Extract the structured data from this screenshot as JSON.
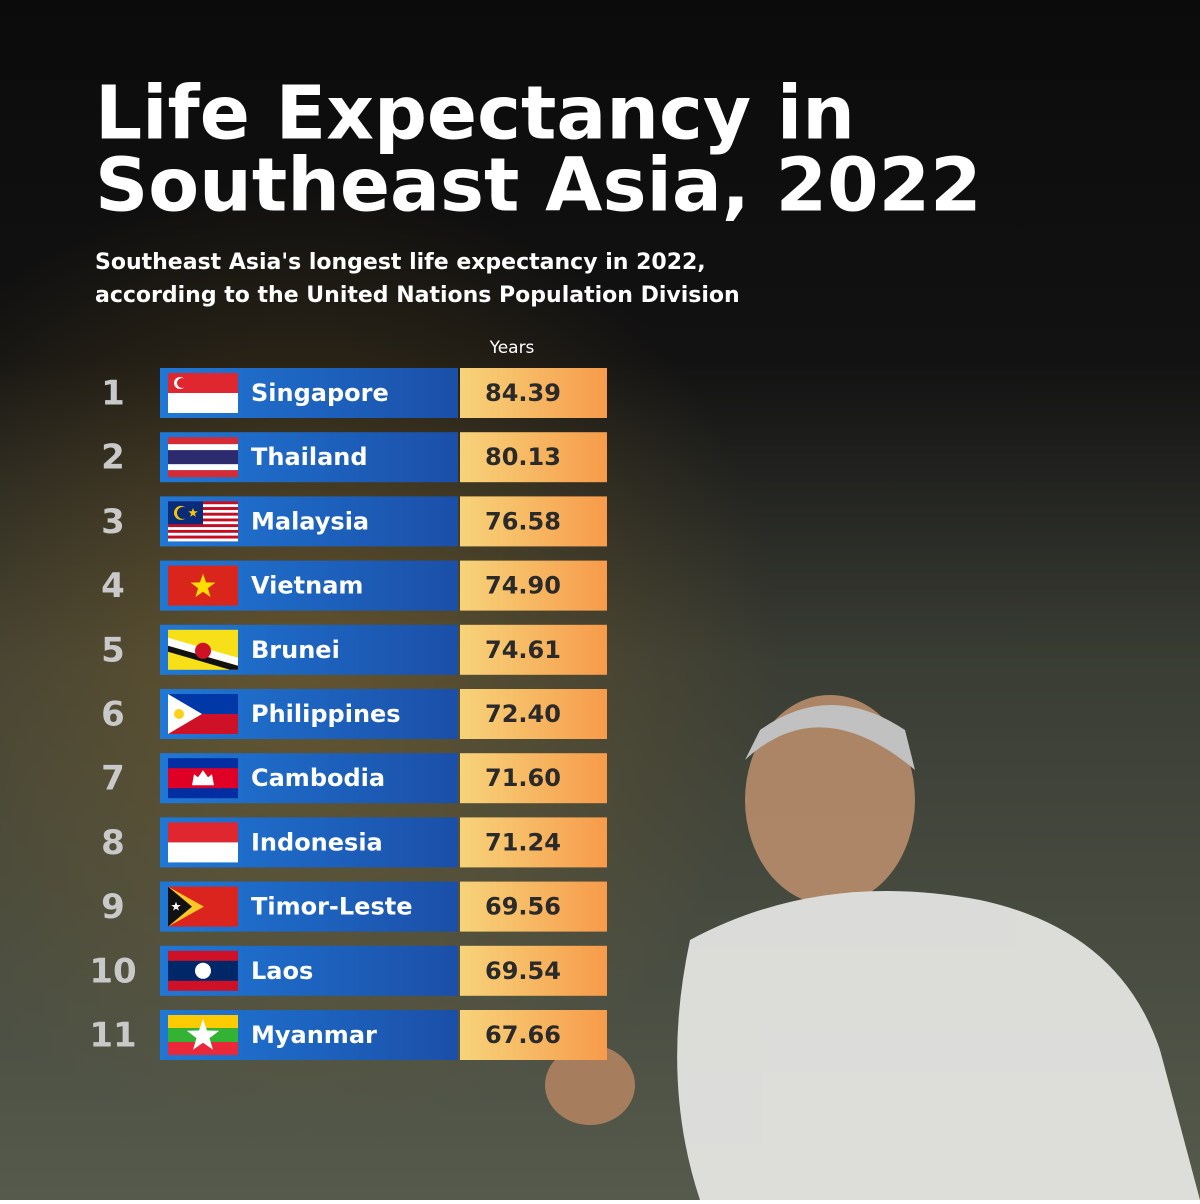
{
  "header": {
    "title_lines": [
      "Life Expectancy in",
      "Southeast Asia, 2022"
    ],
    "subtitle_lines": [
      "Southeast Asia's longest life expectancy in 2022,",
      "according to the United Nations Population Division"
    ]
  },
  "table": {
    "column_header": "Years",
    "rows": [
      [
        "1",
        "Singapore",
        "84.39"
      ],
      [
        "2",
        "Thailand",
        "80.13"
      ],
      [
        "3",
        "Malaysia",
        "76.58"
      ],
      [
        "4",
        "Vietnam",
        "74.90"
      ],
      [
        "5",
        "Brunei",
        "74.61"
      ],
      [
        "6",
        "Philippines",
        "72.40"
      ],
      [
        "7",
        "Cambodia",
        "71.60"
      ],
      [
        "8",
        "Indonesia",
        "71.24"
      ],
      [
        "9",
        "Timor-Leste",
        "69.56"
      ],
      [
        "10",
        "Laos",
        "69.54"
      ],
      [
        "11",
        "Myanmar",
        "67.66"
      ]
    ]
  }
}
